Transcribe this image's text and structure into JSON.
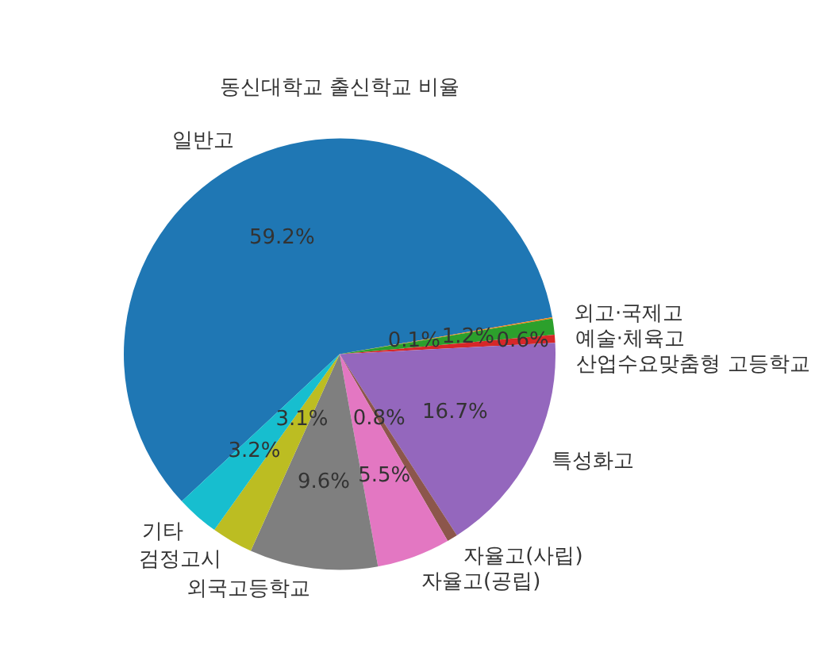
{
  "chart_data": {
    "type": "pie",
    "title": "동신대학교 출신학교 비율",
    "categories": [
      "일반고",
      "외고·국제고",
      "예술·체육고",
      "산업수요맞춤형 고등학교",
      "특성화고",
      "자율고(사립)",
      "자율고(공립)",
      "외국고등학교",
      "검정고시",
      "기타"
    ],
    "values": [
      59.2,
      0.1,
      1.2,
      0.6,
      16.7,
      0.8,
      5.5,
      9.6,
      3.1,
      3.2
    ],
    "colors": [
      "#1f77b4",
      "#ff7f0e",
      "#2ca02c",
      "#d62728",
      "#9467bd",
      "#8c564b",
      "#e377c2",
      "#7f7f7f",
      "#bcbd22",
      "#17becf"
    ],
    "value_labels": [
      "59.2%",
      "0.1%",
      "1.2%",
      "0.6%",
      "16.7%",
      "0.8%",
      "5.5%",
      "9.6%",
      "3.1%",
      "3.2%"
    ]
  }
}
